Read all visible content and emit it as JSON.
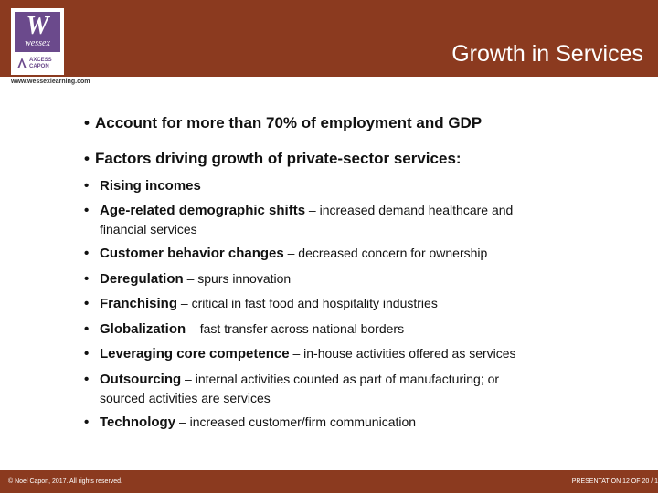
{
  "header": {
    "title": "Growth in Services",
    "logo_main": "W",
    "logo_name": "wessex",
    "logo_sub": "AXCESS CAPON"
  },
  "url": "www.wessexlearning.com",
  "bullets": [
    "Account for more than 70% of employment and GDP",
    "Factors driving growth of private-sector services:"
  ],
  "sub_bullets": [
    {
      "lead": "Rising incomes",
      "rest": ""
    },
    {
      "lead": "Age-related demographic shifts",
      "rest": " – increased demand healthcare and",
      "cont": "financial services"
    },
    {
      "lead": "Customer behavior changes",
      "rest": " – decreased concern for ownership"
    },
    {
      "lead": "Deregulation",
      "rest": " – spurs innovation"
    },
    {
      "lead": "Franchising",
      "rest": " – critical in fast food and hospitality industries"
    },
    {
      "lead": "Globalization",
      "rest": " – fast transfer across national borders"
    },
    {
      "lead": "Leveraging core competence",
      "rest": " – in-house activities offered as services"
    },
    {
      "lead": "Outsourcing",
      "rest": " – internal activities counted as part of manufacturing; or",
      "cont": "sourced activities are services"
    },
    {
      "lead": "Technology",
      "rest": " – increased customer/firm communication"
    }
  ],
  "footer": {
    "copyright": "© Noel Capon, 2017. All rights reserved.",
    "page": "PRESENTATION 12 OF 20 / 1"
  },
  "colors": {
    "brand": "#8b3a1f",
    "logo": "#6b4a8c"
  }
}
